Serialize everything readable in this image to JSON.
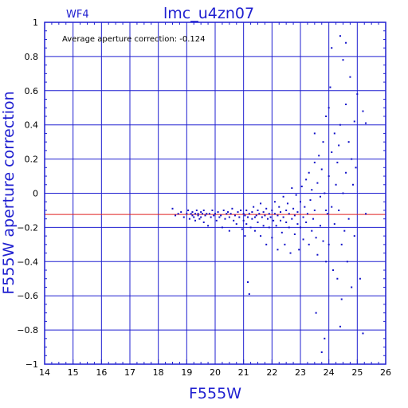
{
  "chart_data": {
    "type": "scatter",
    "title": "lmc_u4zn07",
    "chip": "WF4",
    "annotation": "Average aperture correction: -0.124",
    "xlabel": "F555W",
    "ylabel": "F555W aperture correction",
    "xlim": [
      14,
      26
    ],
    "ylim": [
      -1,
      1
    ],
    "xticks": [
      14,
      15,
      16,
      17,
      18,
      19,
      20,
      21,
      22,
      23,
      24,
      25,
      26
    ],
    "yticks": [
      -1,
      -0.8,
      -0.6,
      -0.4,
      -0.2,
      0,
      0.2,
      0.4,
      0.6,
      0.8,
      1
    ],
    "ytick_labels": [
      "−1",
      "−0.8",
      "−0.6",
      "−0.4",
      "−0.2",
      "0",
      "0.2",
      "0.4",
      "0.6",
      "0.8",
      "1"
    ],
    "grid": true,
    "reference_line": {
      "y": -0.124,
      "color": "#e02020"
    },
    "point_color": "#1010c8",
    "axis_color": "#1f1fd0",
    "points": [
      [
        18.5,
        -0.09
      ],
      [
        18.6,
        -0.13
      ],
      [
        18.7,
        -0.12
      ],
      [
        18.8,
        -0.11
      ],
      [
        18.9,
        -0.14
      ],
      [
        19.0,
        -0.12
      ],
      [
        19.05,
        -0.1
      ],
      [
        19.1,
        -0.15
      ],
      [
        19.15,
        -0.12
      ],
      [
        19.2,
        -0.13
      ],
      [
        19.2,
        -0.11
      ],
      [
        19.25,
        -0.14
      ],
      [
        19.3,
        -0.12
      ],
      [
        19.3,
        -0.16
      ],
      [
        19.35,
        -0.1
      ],
      [
        19.4,
        -0.13
      ],
      [
        19.4,
        -0.12
      ],
      [
        19.45,
        -0.15
      ],
      [
        19.5,
        -0.11
      ],
      [
        19.5,
        -0.14
      ],
      [
        19.55,
        -0.12
      ],
      [
        19.6,
        -0.1
      ],
      [
        19.6,
        -0.17
      ],
      [
        19.65,
        -0.13
      ],
      [
        19.7,
        -0.12
      ],
      [
        19.75,
        -0.19
      ],
      [
        19.8,
        -0.12
      ],
      [
        19.85,
        -0.14
      ],
      [
        19.9,
        -0.1
      ],
      [
        19.95,
        -0.13
      ],
      [
        20.0,
        -0.12
      ],
      [
        20.05,
        -0.16
      ],
      [
        20.1,
        -0.11
      ],
      [
        20.15,
        -0.14
      ],
      [
        20.2,
        -0.13
      ],
      [
        20.25,
        -0.2
      ],
      [
        20.3,
        -0.1
      ],
      [
        20.35,
        -0.15
      ],
      [
        20.4,
        -0.12
      ],
      [
        20.45,
        -0.11
      ],
      [
        20.5,
        -0.14
      ],
      [
        20.5,
        -0.22
      ],
      [
        20.55,
        -0.12
      ],
      [
        20.6,
        -0.09
      ],
      [
        20.65,
        -0.16
      ],
      [
        20.7,
        -0.13
      ],
      [
        20.75,
        -0.18
      ],
      [
        20.8,
        -0.11
      ],
      [
        20.85,
        -0.14
      ],
      [
        20.9,
        -0.1
      ],
      [
        20.95,
        -0.21
      ],
      [
        21.0,
        -0.12
      ],
      [
        21.0,
        -0.16
      ],
      [
        21.05,
        -0.13
      ],
      [
        21.05,
        -0.25
      ],
      [
        21.1,
        -0.1
      ],
      [
        21.1,
        -0.18
      ],
      [
        21.15,
        -0.14
      ],
      [
        21.15,
        -0.52
      ],
      [
        21.2,
        -0.59
      ],
      [
        21.2,
        -0.12
      ],
      [
        21.25,
        -0.2
      ],
      [
        21.3,
        -0.11
      ],
      [
        21.3,
        -0.15
      ],
      [
        21.35,
        -0.08
      ],
      [
        21.4,
        -0.14
      ],
      [
        21.4,
        -0.22
      ],
      [
        21.45,
        -0.13
      ],
      [
        21.5,
        -0.1
      ],
      [
        21.5,
        -0.17
      ],
      [
        21.55,
        -0.12
      ],
      [
        21.6,
        -0.25
      ],
      [
        21.6,
        -0.06
      ],
      [
        21.65,
        -0.14
      ],
      [
        21.7,
        -0.11
      ],
      [
        21.7,
        -0.19
      ],
      [
        21.75,
        -0.13
      ],
      [
        21.8,
        -0.3
      ],
      [
        21.8,
        -0.09
      ],
      [
        21.85,
        -0.15
      ],
      [
        21.9,
        -0.12
      ],
      [
        21.9,
        -0.2
      ],
      [
        21.95,
        -0.14
      ],
      [
        22.0,
        -0.1
      ],
      [
        22.0,
        -0.26
      ],
      [
        22.05,
        -0.16
      ],
      [
        22.1,
        -0.05
      ],
      [
        22.1,
        -0.12
      ],
      [
        22.15,
        -0.19
      ],
      [
        22.2,
        -0.13
      ],
      [
        22.2,
        -0.33
      ],
      [
        22.25,
        -0.08
      ],
      [
        22.3,
        -0.16
      ],
      [
        22.3,
        -0.11
      ],
      [
        22.35,
        -0.23
      ],
      [
        22.4,
        -0.02
      ],
      [
        22.4,
        -0.14
      ],
      [
        22.45,
        -0.3
      ],
      [
        22.5,
        -0.1
      ],
      [
        22.5,
        -0.17
      ],
      [
        22.55,
        -0.06
      ],
      [
        22.6,
        -0.2
      ],
      [
        22.6,
        -0.12
      ],
      [
        22.65,
        -0.35
      ],
      [
        22.7,
        -0.15
      ],
      [
        22.7,
        0.03
      ],
      [
        22.75,
        -0.09
      ],
      [
        22.8,
        -0.24
      ],
      [
        22.8,
        -0.13
      ],
      [
        22.85,
        -0.01
      ],
      [
        22.9,
        -0.18
      ],
      [
        22.9,
        -0.11
      ],
      [
        22.95,
        -0.33
      ],
      [
        23.0,
        -0.05
      ],
      [
        23.0,
        -0.2
      ],
      [
        23.05,
        0.04
      ],
      [
        23.1,
        -0.14
      ],
      [
        23.1,
        -0.27
      ],
      [
        23.15,
        -0.08
      ],
      [
        23.2,
        0.08
      ],
      [
        23.2,
        -0.17
      ],
      [
        23.25,
        -0.12
      ],
      [
        23.3,
        -0.3
      ],
      [
        23.3,
        0.12
      ],
      [
        23.35,
        -0.04
      ],
      [
        23.4,
        -0.22
      ],
      [
        23.4,
        0.02
      ],
      [
        23.45,
        -0.15
      ],
      [
        23.5,
        0.18
      ],
      [
        23.5,
        -0.1
      ],
      [
        23.55,
        -0.26
      ],
      [
        23.6,
        0.06
      ],
      [
        23.6,
        -0.36
      ],
      [
        23.65,
        0.22
      ],
      [
        23.7,
        -0.02
      ],
      [
        23.7,
        -0.19
      ],
      [
        23.75,
        0.14
      ],
      [
        23.8,
        -0.28
      ],
      [
        23.8,
        0.3
      ],
      [
        23.85,
        0.0
      ],
      [
        23.9,
        -0.4
      ],
      [
        23.9,
        0.45
      ],
      [
        23.95,
        -0.12
      ],
      [
        24.0,
        0.1
      ],
      [
        24.0,
        -0.3
      ],
      [
        24.05,
        0.62
      ],
      [
        24.1,
        -0.08
      ],
      [
        24.1,
        0.24
      ],
      [
        24.15,
        -0.45
      ],
      [
        24.2,
        0.35
      ],
      [
        24.2,
        -0.18
      ],
      [
        24.25,
        0.05
      ],
      [
        24.3,
        -0.5
      ],
      [
        24.3,
        0.18
      ],
      [
        24.35,
        -0.1
      ],
      [
        24.4,
        0.92
      ],
      [
        24.4,
        0.4
      ],
      [
        24.45,
        -0.3
      ],
      [
        24.5,
        0.0
      ],
      [
        24.5,
        0.78
      ],
      [
        24.55,
        -0.22
      ],
      [
        24.6,
        0.52
      ],
      [
        24.6,
        0.12
      ],
      [
        24.65,
        -0.4
      ],
      [
        24.7,
        0.3
      ],
      [
        24.7,
        -0.15
      ],
      [
        24.75,
        0.68
      ],
      [
        24.8,
        0.2
      ],
      [
        24.8,
        -0.55
      ],
      [
        24.85,
        0.05
      ],
      [
        24.9,
        0.42
      ],
      [
        24.9,
        -0.25
      ],
      [
        24.95,
        0.15
      ],
      [
        25.0,
        0.58
      ],
      [
        25.1,
        -0.5
      ],
      [
        25.2,
        0.48
      ],
      [
        25.3,
        0.41
      ],
      [
        25.3,
        -0.12
      ],
      [
        25.2,
        -0.82
      ],
      [
        24.1,
        0.85
      ],
      [
        23.55,
        -0.7
      ],
      [
        23.75,
        -0.93
      ],
      [
        24.45,
        -0.62
      ],
      [
        23.9,
        -0.1
      ],
      [
        23.85,
        -0.85
      ],
      [
        24.4,
        -0.78
      ],
      [
        24.6,
        0.88
      ],
      [
        23.5,
        0.35
      ],
      [
        24.0,
        0.5
      ],
      [
        24.35,
        0.28
      ]
    ]
  }
}
